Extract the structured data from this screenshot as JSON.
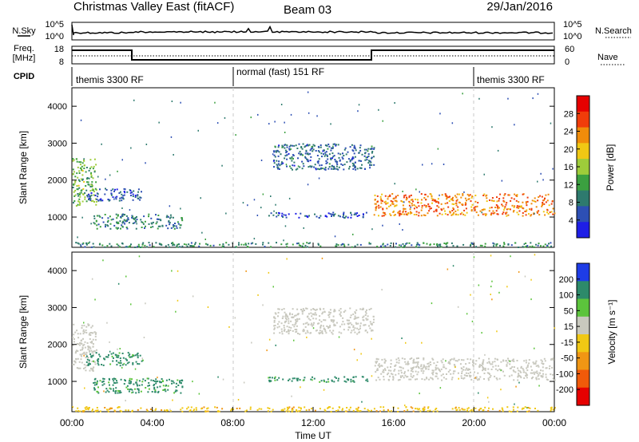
{
  "header": {
    "title": "Christmas Valley East (fitACF)",
    "beam": "Beam 03",
    "date": "29/Jan/2016"
  },
  "nsky_panel": {
    "label": "N.Sky",
    "left_ticks": [
      "10^5",
      "10^0"
    ],
    "right_ticks": [
      "10^5",
      "10^0"
    ],
    "right_label": "N.Search"
  },
  "freq_panel": {
    "label_line1": "Freq.",
    "label_line2": "[MHz]",
    "left_ticks": [
      "18",
      "8"
    ],
    "right_ticks": [
      "60",
      "0"
    ],
    "right_label": "Nave"
  },
  "cpid": {
    "label": "CPID",
    "segments": [
      {
        "text": "themis 3300 RF",
        "start_hour": 0
      },
      {
        "text": "normal (fast) 151 RF",
        "start_hour": 8
      },
      {
        "text": "themis 3300 RF",
        "start_hour": 20
      }
    ]
  },
  "chart_data": [
    {
      "type": "heatmap",
      "name": "power",
      "ylabel": "Slant Range [km]",
      "yticks": [
        "4000",
        "3000",
        "2000",
        "1000"
      ],
      "ylim": [
        180,
        4500
      ],
      "colorbar_label": "Power [dB]",
      "colorbar_ticks": [
        "28",
        "24",
        "20",
        "16",
        "12",
        "8",
        "4"
      ],
      "colorbar_range": [
        0,
        32
      ],
      "colors": [
        "#1e1ee6",
        "#2d4fb4",
        "#2e7a6e",
        "#3ba040",
        "#9ecc3a",
        "#f0c814",
        "#f08c0a",
        "#f03c0a",
        "#e60000"
      ],
      "echo_regions": [
        {
          "t": [
            0.0,
            1.2
          ],
          "range": [
            1300,
            2600
          ],
          "power": 14
        },
        {
          "t": [
            0.7,
            3.5
          ],
          "range": [
            1450,
            1800
          ],
          "power": 6
        },
        {
          "t": [
            1.0,
            5.5
          ],
          "range": [
            700,
            1100
          ],
          "power": 9
        },
        {
          "t": [
            9.7,
            14.7
          ],
          "range": [
            1000,
            1150
          ],
          "power": 5
        },
        {
          "t": [
            10.0,
            15.0
          ],
          "range": [
            2300,
            3000
          ],
          "power": 7
        },
        {
          "t": [
            15.0,
            24.0
          ],
          "range": [
            1050,
            1650
          ],
          "power": 24
        },
        {
          "t": [
            0.0,
            24.0
          ],
          "range": [
            200,
            330
          ],
          "power": 10
        }
      ]
    },
    {
      "type": "heatmap",
      "name": "velocity",
      "ylabel": "Slant Range [km]",
      "yticks": [
        "4000",
        "3000",
        "2000",
        "1000"
      ],
      "ylim": [
        180,
        4500
      ],
      "xlabel": "Time UT",
      "xticks": [
        "00:00",
        "04:00",
        "08:00",
        "12:00",
        "16:00",
        "20:00",
        "00:00"
      ],
      "xlim_hours": [
        0,
        24
      ],
      "colorbar_label": "Velocity [m s⁻¹]",
      "colorbar_ticks": [
        "200",
        "100",
        "50",
        "15",
        "-15",
        "-50",
        "-100",
        "-200"
      ],
      "colors": [
        "#1e3ce6",
        "#2d8a6a",
        "#5cc43c",
        "#c8c8be",
        "#f0c814",
        "#f09614",
        "#f05a0a",
        "#e60000"
      ],
      "echo_regions": [
        {
          "t": [
            0.0,
            1.2
          ],
          "range": [
            1300,
            2600
          ],
          "velocity": 0
        },
        {
          "t": [
            0.7,
            3.5
          ],
          "range": [
            1450,
            1800
          ],
          "velocity": 60
        },
        {
          "t": [
            1.0,
            5.5
          ],
          "range": [
            700,
            1100
          ],
          "velocity": 60
        },
        {
          "t": [
            9.7,
            14.7
          ],
          "range": [
            1000,
            1150
          ],
          "velocity": 60
        },
        {
          "t": [
            10.0,
            15.0
          ],
          "range": [
            2300,
            3000
          ],
          "velocity": 0
        },
        {
          "t": [
            15.0,
            24.0
          ],
          "range": [
            1050,
            1650
          ],
          "velocity": 0
        },
        {
          "t": [
            0.0,
            24.0
          ],
          "range": [
            200,
            330
          ],
          "velocity": -40
        }
      ]
    }
  ]
}
